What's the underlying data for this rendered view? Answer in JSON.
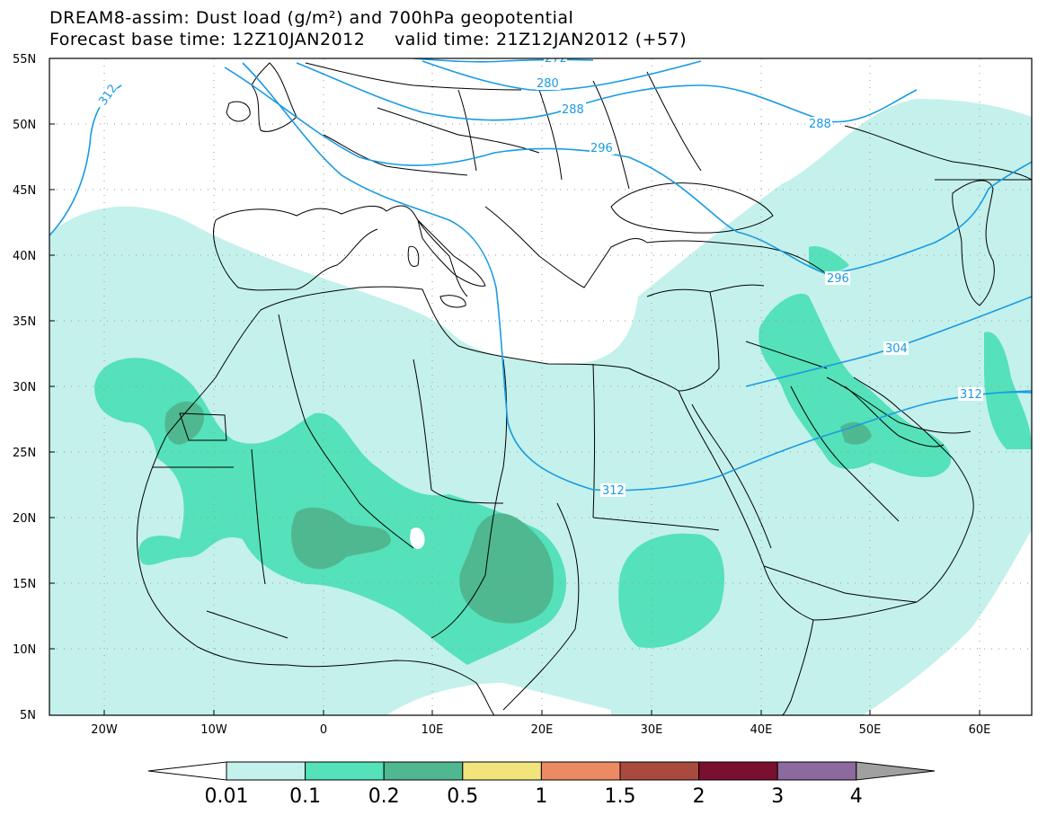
{
  "title": {
    "line1": "DREAM8-assim: Dust load (g/m²) and 700hPa geopotential",
    "line2": "Forecast base time: 12Z10JAN2012     valid time: 21Z12JAN2012 (+57)"
  },
  "axes": {
    "lat_labels": [
      "55N",
      "50N",
      "45N",
      "40N",
      "35N",
      "30N",
      "25N",
      "20N",
      "15N",
      "10N",
      "5N"
    ],
    "lon_labels": [
      "20W",
      "10W",
      "0",
      "10E",
      "20E",
      "30E",
      "40E",
      "50E",
      "60E"
    ]
  },
  "contours": {
    "color": "#1a9be3",
    "labels": [
      "312",
      "272",
      "280",
      "288",
      "296",
      "288",
      "296",
      "304",
      "312",
      "312"
    ]
  },
  "colorbar": {
    "levels": [
      "0.01",
      "0.1",
      "0.2",
      "0.5",
      "1",
      "1.5",
      "2",
      "3",
      "4"
    ],
    "colors": [
      "#ffffff",
      "#c4f1eb",
      "#55e1b9",
      "#4fb890",
      "#f1e47a",
      "#ec8a64",
      "#a94a3e",
      "#7a1030",
      "#8c6aa0",
      "#a0a0a0"
    ]
  },
  "dust_colors": {
    "low": "#c4f1eb",
    "mid": "#55e1b9",
    "high": "#4fb890",
    "peak": "#5ea889"
  }
}
